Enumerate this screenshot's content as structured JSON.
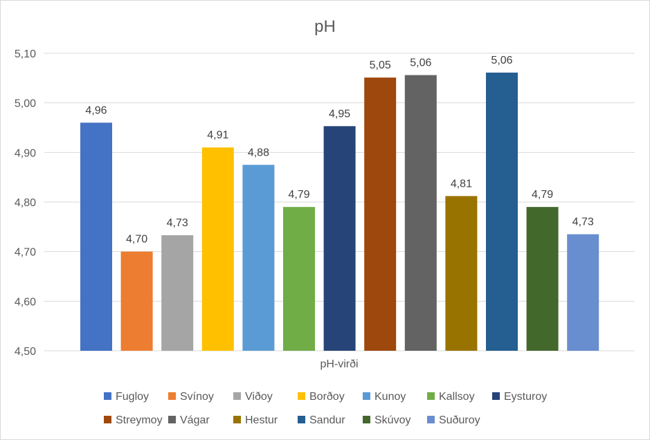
{
  "chart_data": {
    "type": "bar",
    "title": "pH",
    "xlabel": "pH-virði",
    "ylabel": "",
    "ylim": [
      4.5,
      5.1
    ],
    "yticks": [
      "4,50",
      "4,60",
      "4,70",
      "4,80",
      "4,90",
      "5,00",
      "5,10"
    ],
    "grid": true,
    "legend_position": "bottom",
    "series": [
      {
        "name": "Fugloy",
        "value": 4.96,
        "label": "4,96",
        "color": "#4472C4"
      },
      {
        "name": "Svínoy",
        "value": 4.7,
        "label": "4,70",
        "color": "#ED7D31"
      },
      {
        "name": "Viðoy",
        "value": 4.733,
        "label": "4,73",
        "color": "#A5A5A5"
      },
      {
        "name": "Borðoy",
        "value": 4.91,
        "label": "4,91",
        "color": "#FFC000"
      },
      {
        "name": "Kunoy",
        "value": 4.875,
        "label": "4,88",
        "color": "#5B9BD5"
      },
      {
        "name": "Kallsoy",
        "value": 4.79,
        "label": "4,79",
        "color": "#70AD47"
      },
      {
        "name": "Eysturoy",
        "value": 4.953,
        "label": "4,95",
        "color": "#264478"
      },
      {
        "name": "Streymoy",
        "value": 5.051,
        "label": "5,05",
        "color": "#9E480E"
      },
      {
        "name": "Vágar",
        "value": 5.056,
        "label": "5,06",
        "color": "#636363"
      },
      {
        "name": "Hestur",
        "value": 4.812,
        "label": "4,81",
        "color": "#997300"
      },
      {
        "name": "Sandur",
        "value": 5.061,
        "label": "5,06",
        "color": "#255E91"
      },
      {
        "name": "Skúvoy",
        "value": 4.79,
        "label": "4,79",
        "color": "#43682B"
      },
      {
        "name": "Suðuroy",
        "value": 4.735,
        "label": "4,73",
        "color": "#698ED0"
      }
    ]
  }
}
